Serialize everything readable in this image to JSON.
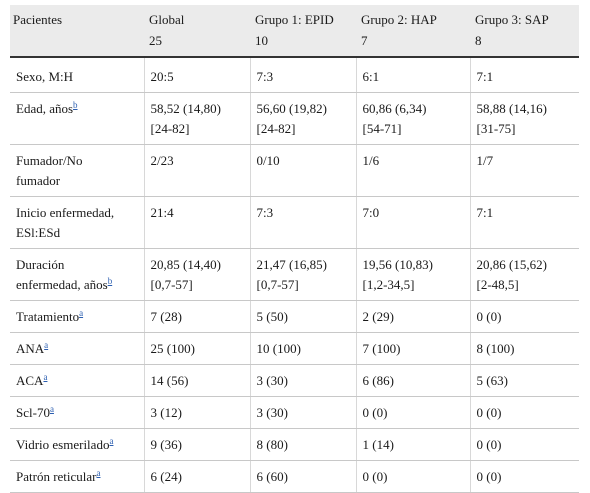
{
  "header": {
    "col0": "Pacientes",
    "col1_line1": "Global",
    "col1_line2": "25",
    "col2_line1": "Grupo 1: EPID",
    "col2_line2": "10",
    "col3_line1": "Grupo 2: HAP",
    "col3_line2": "7",
    "col4_line1": "Grupo 3: SAP",
    "col4_line2": "8"
  },
  "rows": [
    {
      "label_1": "Sexo, M:H",
      "label_2": "",
      "sup": "",
      "c1_1": "20:5",
      "c1_2": "",
      "c2_1": "7:3",
      "c2_2": "",
      "c3_1": "6:1",
      "c3_2": "",
      "c4_1": "7:1",
      "c4_2": ""
    },
    {
      "label_1": "Edad, años",
      "label_2": "",
      "sup": "b",
      "c1_1": "58,52 (14,80)",
      "c1_2": "[24-82]",
      "c2_1": "56,60 (19,82)",
      "c2_2": "[24-82]",
      "c3_1": "60,86 (6,34)",
      "c3_2": "[54-71]",
      "c4_1": "58,88 (14,16)",
      "c4_2": "[31-75]"
    },
    {
      "label_1": "Fumador/No",
      "label_2": "fumador",
      "sup": "",
      "c1_1": "2/23",
      "c1_2": "",
      "c2_1": "0/10",
      "c2_2": "",
      "c3_1": "1/6",
      "c3_2": "",
      "c4_1": "1/7",
      "c4_2": ""
    },
    {
      "label_1": "Inicio enfermedad,",
      "label_2": "ESl:ESd",
      "sup": "",
      "c1_1": "21:4",
      "c1_2": "",
      "c2_1": "7:3",
      "c2_2": "",
      "c3_1": "7:0",
      "c3_2": "",
      "c4_1": "7:1",
      "c4_2": ""
    },
    {
      "label_1": "Duración",
      "label_2": "enfermedad, años",
      "sup": "b",
      "c1_1": "20,85 (14,40)",
      "c1_2": "[0,7-57]",
      "c2_1": "21,47 (16,85)",
      "c2_2": "[0,7-57]",
      "c3_1": "19,56 (10,83)",
      "c3_2": "[1,2-34,5]",
      "c4_1": "20,86 (15,62)",
      "c4_2": "[2-48,5]"
    },
    {
      "label_1": "Tratamiento",
      "label_2": "",
      "sup": "a",
      "c1_1": "7 (28)",
      "c1_2": "",
      "c2_1": "5 (50)",
      "c2_2": "",
      "c3_1": "2 (29)",
      "c3_2": "",
      "c4_1": "0 (0)",
      "c4_2": ""
    },
    {
      "label_1": "ANA",
      "label_2": "",
      "sup": "a",
      "c1_1": "25 (100)",
      "c1_2": "",
      "c2_1": "10 (100)",
      "c2_2": "",
      "c3_1": "7 (100)",
      "c3_2": "",
      "c4_1": "8 (100)",
      "c4_2": ""
    },
    {
      "label_1": "ACA",
      "label_2": "",
      "sup": "a",
      "c1_1": "14 (56)",
      "c1_2": "",
      "c2_1": "3 (30)",
      "c2_2": "",
      "c3_1": "6 (86)",
      "c3_2": "",
      "c4_1": "5 (63)",
      "c4_2": ""
    },
    {
      "label_1": "Scl-70",
      "label_2": "",
      "sup": "a",
      "c1_1": "3 (12)",
      "c1_2": "",
      "c2_1": "3 (30)",
      "c2_2": "",
      "c3_1": "0 (0)",
      "c3_2": "",
      "c4_1": "0 (0)",
      "c4_2": ""
    },
    {
      "label_1": "Vidrio esmerilado",
      "label_2": "",
      "sup": "a",
      "c1_1": "9 (36)",
      "c1_2": "",
      "c2_1": "8 (80)",
      "c2_2": "",
      "c3_1": "1 (14)",
      "c3_2": "",
      "c4_1": "0 (0)",
      "c4_2": ""
    },
    {
      "label_1": "Patrón reticular",
      "label_2": "",
      "sup": "a",
      "c1_1": "6 (24)",
      "c1_2": "",
      "c2_1": "6 (60)",
      "c2_2": "",
      "c3_1": "0 (0)",
      "c3_2": "",
      "c4_1": "0 (0)",
      "c4_2": ""
    }
  ]
}
